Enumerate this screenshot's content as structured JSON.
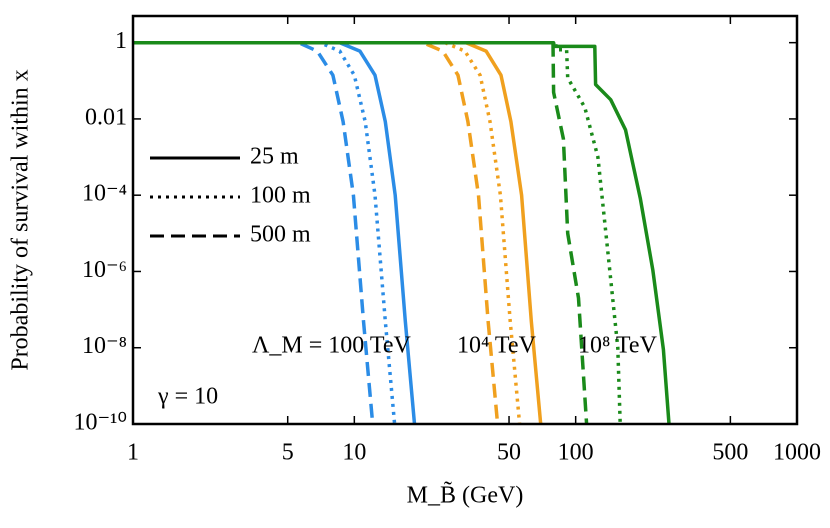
{
  "chart_data": {
    "type": "line",
    "xlabel": "M_B̃ (GeV)",
    "ylabel": "Probability of survival within x",
    "xscale": "log",
    "yscale": "log",
    "xlim": [
      1,
      1000
    ],
    "ylim": [
      1e-10,
      5
    ],
    "xticks": [
      1,
      5,
      10,
      50,
      100,
      500,
      1000
    ],
    "yticks": [
      {
        "value": 1e-10,
        "label": "10⁻¹⁰"
      },
      {
        "value": 1e-08,
        "label": "10⁻⁸"
      },
      {
        "value": 1e-06,
        "label": "10⁻⁶"
      },
      {
        "value": 0.0001,
        "label": "10⁻⁴"
      },
      0.01,
      1
    ],
    "legend_loc": "center left",
    "legend_entries": [
      {
        "name": "25 m",
        "style": "solid"
      },
      {
        "name": "100 m",
        "style": "dotted"
      },
      {
        "name": "500 m",
        "style": "dashed"
      }
    ],
    "annotations": [
      "Λ_M = 100 TeV",
      "10⁴ TeV",
      "10⁸ TeV",
      "γ = 10"
    ],
    "series": [
      {
        "color": "#2b8ce6",
        "style": "solid",
        "x": [
          1,
          8.6,
          10.6,
          12.4,
          13.8,
          15.3,
          17.0,
          18.7
        ],
        "values": [
          1,
          1,
          0.6,
          0.14,
          0.0085,
          0.0001,
          5e-08,
          1e-10
        ]
      },
      {
        "color": "#2b8ce6",
        "style": "dotted",
        "x": [
          1,
          7.0,
          8.6,
          10.0,
          11.2,
          12.4,
          13.8,
          15.2
        ],
        "values": [
          1,
          1,
          0.6,
          0.14,
          0.0085,
          0.0001,
          5e-08,
          1e-10
        ]
      },
      {
        "color": "#2b8ce6",
        "style": "dashed",
        "x": [
          1,
          5.6,
          6.8,
          8.0,
          8.9,
          9.9,
          11.0,
          12.1
        ],
        "values": [
          1,
          1,
          0.6,
          0.14,
          0.0085,
          0.0001,
          5e-08,
          1e-10
        ]
      },
      {
        "color": "#f0a01e",
        "style": "solid",
        "x": [
          1,
          32,
          39.4,
          46,
          51,
          57,
          63,
          69.5
        ],
        "values": [
          1,
          1,
          0.6,
          0.14,
          0.0085,
          0.0001,
          5e-08,
          1e-10
        ]
      },
      {
        "color": "#f0a01e",
        "style": "dotted",
        "x": [
          1,
          25.7,
          31.6,
          37,
          41,
          45.7,
          50.6,
          55.8
        ],
        "values": [
          1,
          1,
          0.6,
          0.14,
          0.0085,
          0.0001,
          5e-08,
          1e-10
        ]
      },
      {
        "color": "#f0a01e",
        "style": "dashed",
        "x": [
          1,
          20.4,
          25.1,
          29.4,
          32.6,
          36.4,
          40.2,
          44.4
        ],
        "values": [
          1,
          1,
          0.6,
          0.14,
          0.0085,
          0.0001,
          5e-08,
          1e-10
        ]
      },
      {
        "color": "#1a8a1a",
        "style": "solid",
        "x": [
          1,
          79.5,
          80,
          122,
          123,
          144,
          168,
          196,
          223,
          249,
          264
        ],
        "values": [
          1,
          1,
          0.8,
          0.8,
          0.08,
          0.032,
          0.0052,
          8e-05,
          1.1e-06,
          9e-09,
          1e-10
        ]
      },
      {
        "color": "#1a8a1a",
        "style": "dotted",
        "x": [
          1,
          81,
          82,
          91,
          92,
          110,
          126,
          140,
          155,
          159
        ],
        "values": [
          1,
          1,
          0.65,
          0.65,
          0.12,
          0.02,
          0.001,
          3e-06,
          1e-08,
          1e-10
        ]
      },
      {
        "color": "#1a8a1a",
        "style": "dashed",
        "x": [
          1,
          79,
          79.5,
          88,
          92,
          103,
          112
        ],
        "values": [
          1,
          1,
          0.05,
          0.003,
          1e-05,
          2e-07,
          1e-10
        ]
      }
    ]
  }
}
